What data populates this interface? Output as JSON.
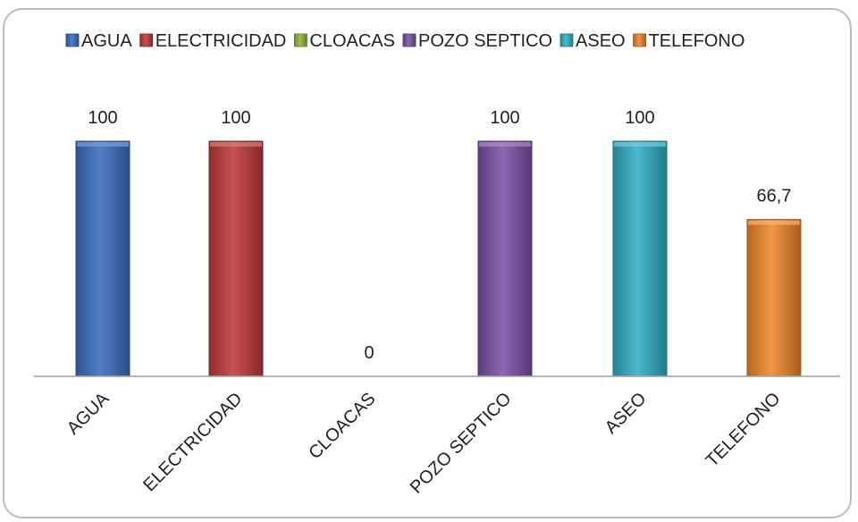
{
  "chart_data": {
    "type": "bar",
    "categories": [
      "AGUA",
      "ELECTRICIDAD",
      "CLOACAS",
      "POZO SEPTICO",
      "ASEO",
      "TELEFONO"
    ],
    "values": [
      100,
      100,
      0,
      100,
      100,
      66.7
    ],
    "data_labels": [
      "100",
      "100",
      "0",
      "100",
      "100",
      "66,7"
    ],
    "legend": {
      "placement": "top",
      "entries": [
        "AGUA",
        "ELECTRICIDAD",
        "CLOACAS",
        "POZO SEPTICO",
        "ASEO",
        "TELEFONO"
      ]
    },
    "colors": [
      "#3a6fc0",
      "#c0393a",
      "#8fb83a",
      "#7a52a8",
      "#31b0c8",
      "#f0882a"
    ],
    "ylim": [
      0,
      100
    ],
    "grid": false,
    "title": "",
    "xlabel": "",
    "ylabel": ""
  }
}
